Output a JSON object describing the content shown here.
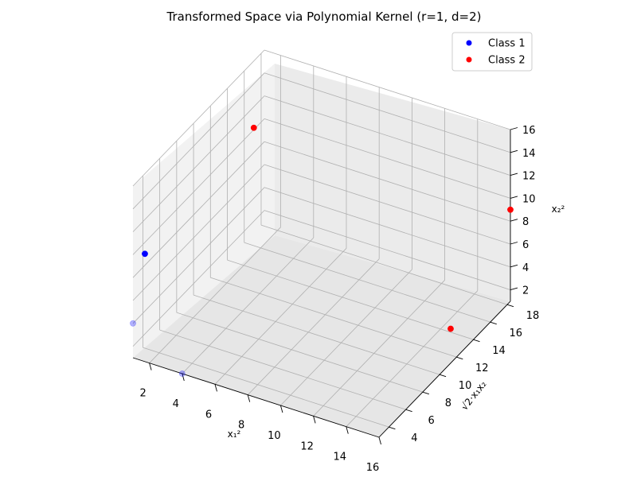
{
  "chart_data": {
    "type": "scatter",
    "title": "Transformed Space via Polynomial Kernel (r=1, d=2)",
    "xlabel": "x₁²",
    "ylabel": "√2·x₁x₂",
    "zlabel": "x₂²",
    "x_ticks": [
      "2",
      "4",
      "6",
      "8",
      "10",
      "12",
      "14",
      "16"
    ],
    "y_ticks": [
      "4",
      "6",
      "8",
      "10",
      "12",
      "14",
      "16",
      "18"
    ],
    "z_ticks": [
      "2",
      "4",
      "6",
      "8",
      "10",
      "12",
      "14",
      "16"
    ],
    "xlim": [
      1,
      16
    ],
    "ylim": [
      2.83,
      18.38
    ],
    "zlim": [
      1,
      16
    ],
    "grid": true,
    "legend_position": "top-right",
    "series": [
      {
        "name": "Class 1",
        "color": "#0000ff",
        "points": [
          {
            "x": 1,
            "y": 2.83,
            "z": 4
          },
          {
            "x": 4,
            "y": 2.83,
            "z": 1
          },
          {
            "x": 1,
            "y": 4.24,
            "z": 9
          }
        ]
      },
      {
        "name": "Class 2",
        "color": "#ff0000",
        "points": [
          {
            "x": 16,
            "y": 11.31,
            "z": 4
          },
          {
            "x": 4,
            "y": 11.31,
            "z": 16
          },
          {
            "x": 16,
            "y": 18.38,
            "z": 9
          }
        ]
      }
    ]
  }
}
